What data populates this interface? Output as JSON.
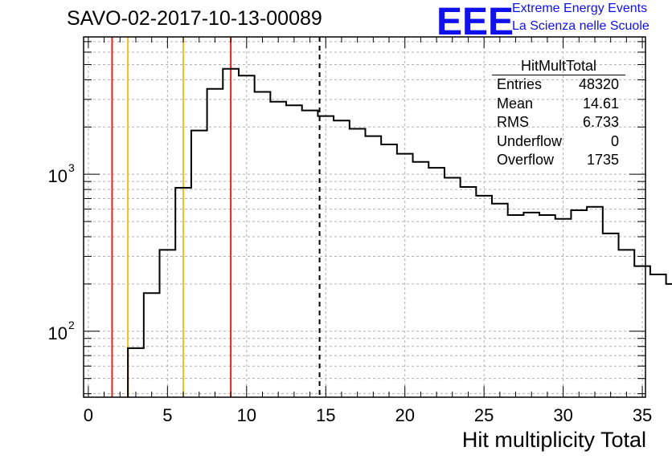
{
  "title": "SAVO-02-2017-10-13-00089",
  "logo": {
    "mark": "EEE",
    "line1": "Extreme Energy Events",
    "line2": "La Scienza nelle Scuole",
    "color": "#1010ee"
  },
  "stats_box": {
    "title": "HitMultTotal",
    "rows": [
      {
        "label": "Entries",
        "value": "48320"
      },
      {
        "label": "Mean",
        "value": "14.61"
      },
      {
        "label": "RMS",
        "value": "6.733"
      },
      {
        "label": "Underflow",
        "value": "0"
      },
      {
        "label": "Overflow",
        "value": "1735"
      }
    ]
  },
  "chart_data": {
    "type": "histogram",
    "title": "SAVO-02-2017-10-13-00089",
    "xlabel": "Hit multiplicity Total",
    "ylabel": "",
    "xlim": [
      -0.3,
      35.2
    ],
    "ylim": [
      38,
      7500
    ],
    "yscale": "log",
    "grid": true,
    "x_ticks": [
      0,
      5,
      10,
      15,
      20,
      25,
      30,
      35
    ],
    "y_tick_labels": [
      {
        "value": 100,
        "label": "10",
        "exp": "2"
      },
      {
        "value": 1000,
        "label": "10",
        "exp": "3"
      }
    ],
    "bin_width": 1,
    "bin_edges_start": 2.5,
    "values": [
      78,
      175,
      330,
      820,
      1900,
      3500,
      4700,
      4250,
      3350,
      2900,
      2750,
      2550,
      2350,
      2200,
      1950,
      1750,
      1550,
      1350,
      1200,
      1100,
      950,
      830,
      730,
      650,
      550,
      570,
      550,
      520,
      590,
      620,
      420,
      330,
      260,
      230,
      200
    ],
    "vertical_lines": [
      {
        "x": 1.5,
        "color": "#e8231e",
        "style": "solid"
      },
      {
        "x": 2.5,
        "color": "#f0c020",
        "style": "solid"
      },
      {
        "x": 6.0,
        "color": "#f0c020",
        "style": "solid"
      },
      {
        "x": 9.0,
        "color": "#e8231e",
        "style": "solid"
      },
      {
        "x": 14.61,
        "color": "#000000",
        "style": "dashed"
      }
    ]
  }
}
